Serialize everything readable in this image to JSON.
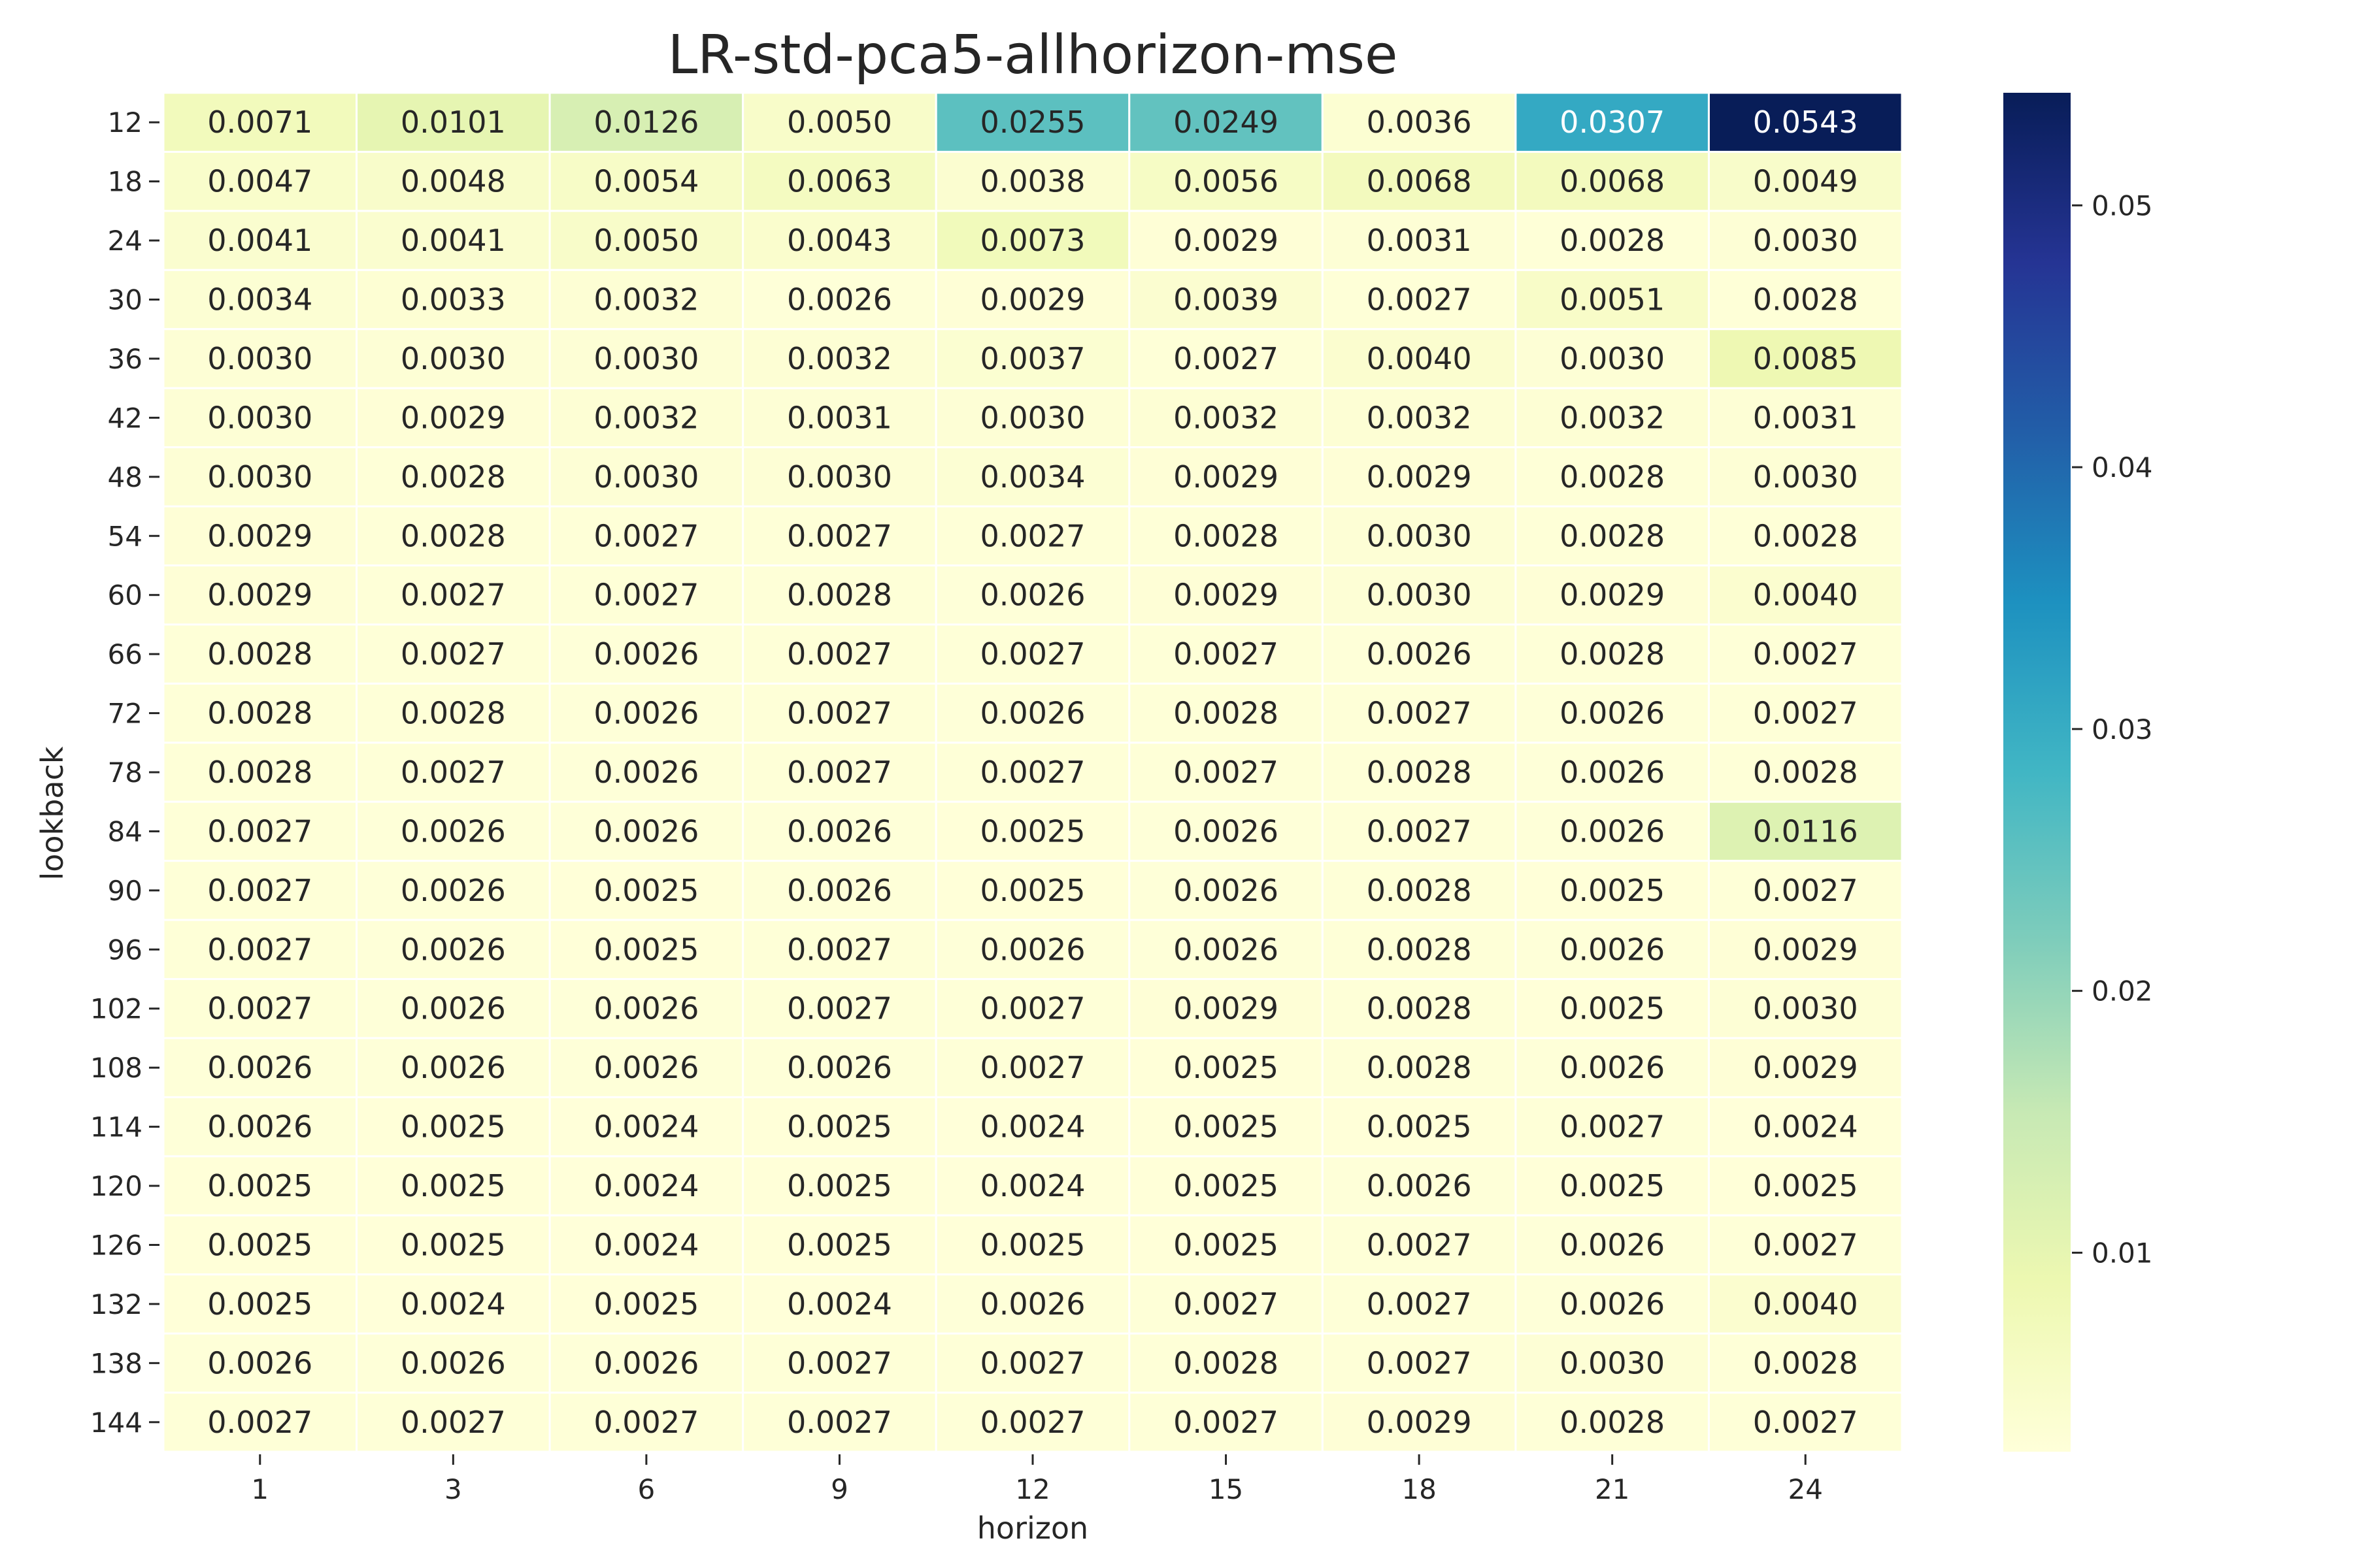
{
  "chart_data": {
    "type": "heatmap",
    "title": "LR-std-pca5-allhorizon-mse",
    "xlabel": "horizon",
    "ylabel": "lookback",
    "x": [
      "1",
      "3",
      "6",
      "9",
      "12",
      "15",
      "18",
      "21",
      "24"
    ],
    "y": [
      "12",
      "18",
      "24",
      "30",
      "36",
      "42",
      "48",
      "54",
      "60",
      "66",
      "72",
      "78",
      "84",
      "90",
      "96",
      "102",
      "108",
      "114",
      "120",
      "126",
      "132",
      "138",
      "144"
    ],
    "values": [
      [
        "0.0071",
        "0.0101",
        "0.0126",
        "0.0050",
        "0.0255",
        "0.0249",
        "0.0036",
        "0.0307",
        "0.0543"
      ],
      [
        "0.0047",
        "0.0048",
        "0.0054",
        "0.0063",
        "0.0038",
        "0.0056",
        "0.0068",
        "0.0068",
        "0.0049"
      ],
      [
        "0.0041",
        "0.0041",
        "0.0050",
        "0.0043",
        "0.0073",
        "0.0029",
        "0.0031",
        "0.0028",
        "0.0030"
      ],
      [
        "0.0034",
        "0.0033",
        "0.0032",
        "0.0026",
        "0.0029",
        "0.0039",
        "0.0027",
        "0.0051",
        "0.0028"
      ],
      [
        "0.0030",
        "0.0030",
        "0.0030",
        "0.0032",
        "0.0037",
        "0.0027",
        "0.0040",
        "0.0030",
        "0.0085"
      ],
      [
        "0.0030",
        "0.0029",
        "0.0032",
        "0.0031",
        "0.0030",
        "0.0032",
        "0.0032",
        "0.0032",
        "0.0031"
      ],
      [
        "0.0030",
        "0.0028",
        "0.0030",
        "0.0030",
        "0.0034",
        "0.0029",
        "0.0029",
        "0.0028",
        "0.0030"
      ],
      [
        "0.0029",
        "0.0028",
        "0.0027",
        "0.0027",
        "0.0027",
        "0.0028",
        "0.0030",
        "0.0028",
        "0.0028"
      ],
      [
        "0.0029",
        "0.0027",
        "0.0027",
        "0.0028",
        "0.0026",
        "0.0029",
        "0.0030",
        "0.0029",
        "0.0040"
      ],
      [
        "0.0028",
        "0.0027",
        "0.0026",
        "0.0027",
        "0.0027",
        "0.0027",
        "0.0026",
        "0.0028",
        "0.0027"
      ],
      [
        "0.0028",
        "0.0028",
        "0.0026",
        "0.0027",
        "0.0026",
        "0.0028",
        "0.0027",
        "0.0026",
        "0.0027"
      ],
      [
        "0.0028",
        "0.0027",
        "0.0026",
        "0.0027",
        "0.0027",
        "0.0027",
        "0.0028",
        "0.0026",
        "0.0028"
      ],
      [
        "0.0027",
        "0.0026",
        "0.0026",
        "0.0026",
        "0.0025",
        "0.0026",
        "0.0027",
        "0.0026",
        "0.0116"
      ],
      [
        "0.0027",
        "0.0026",
        "0.0025",
        "0.0026",
        "0.0025",
        "0.0026",
        "0.0028",
        "0.0025",
        "0.0027"
      ],
      [
        "0.0027",
        "0.0026",
        "0.0025",
        "0.0027",
        "0.0026",
        "0.0026",
        "0.0028",
        "0.0026",
        "0.0029"
      ],
      [
        "0.0027",
        "0.0026",
        "0.0026",
        "0.0027",
        "0.0027",
        "0.0029",
        "0.0028",
        "0.0025",
        "0.0030"
      ],
      [
        "0.0026",
        "0.0026",
        "0.0026",
        "0.0026",
        "0.0027",
        "0.0025",
        "0.0028",
        "0.0026",
        "0.0029"
      ],
      [
        "0.0026",
        "0.0025",
        "0.0024",
        "0.0025",
        "0.0024",
        "0.0025",
        "0.0025",
        "0.0027",
        "0.0024"
      ],
      [
        "0.0025",
        "0.0025",
        "0.0024",
        "0.0025",
        "0.0024",
        "0.0025",
        "0.0026",
        "0.0025",
        "0.0025"
      ],
      [
        "0.0025",
        "0.0025",
        "0.0024",
        "0.0025",
        "0.0025",
        "0.0025",
        "0.0027",
        "0.0026",
        "0.0027"
      ],
      [
        "0.0025",
        "0.0024",
        "0.0025",
        "0.0024",
        "0.0026",
        "0.0027",
        "0.0027",
        "0.0026",
        "0.0040"
      ],
      [
        "0.0026",
        "0.0026",
        "0.0026",
        "0.0027",
        "0.0027",
        "0.0028",
        "0.0027",
        "0.0030",
        "0.0028"
      ],
      [
        "0.0027",
        "0.0027",
        "0.0027",
        "0.0027",
        "0.0027",
        "0.0027",
        "0.0029",
        "0.0028",
        "0.0027"
      ]
    ],
    "colormap": "YlGnBu",
    "value_range": [
      0.0024,
      0.0543
    ],
    "colorbar_ticks": [
      "0.01",
      "0.02",
      "0.03",
      "0.04",
      "0.05"
    ],
    "grid": false,
    "legend": "colorbar-right"
  }
}
